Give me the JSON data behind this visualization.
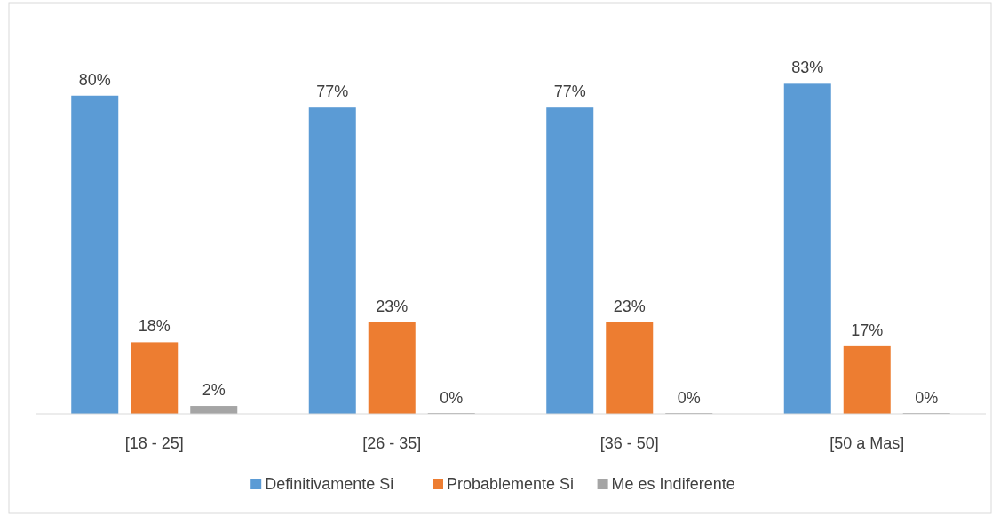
{
  "chart_data": {
    "type": "bar",
    "categories": [
      "[18 - 25]",
      "[26 - 35]",
      "[36 - 50]",
      "[50 a Mas]"
    ],
    "series": [
      {
        "name": "Definitivamente Si",
        "color": "#5b9bd5",
        "values": [
          80,
          77,
          77,
          83
        ],
        "value_labels": [
          "80%",
          "77%",
          "77%",
          "83%"
        ]
      },
      {
        "name": "Probablemente Si",
        "color": "#ed7d31",
        "values": [
          18,
          23,
          23,
          17
        ],
        "value_labels": [
          "18%",
          "23%",
          "23%",
          "17%"
        ]
      },
      {
        "name": "Me es Indiferente",
        "color": "#a5a5a5",
        "values": [
          2,
          0,
          0,
          0
        ],
        "value_labels": [
          "2%",
          "0%",
          "0%",
          "0%"
        ]
      }
    ],
    "legend": "bottom"
  }
}
